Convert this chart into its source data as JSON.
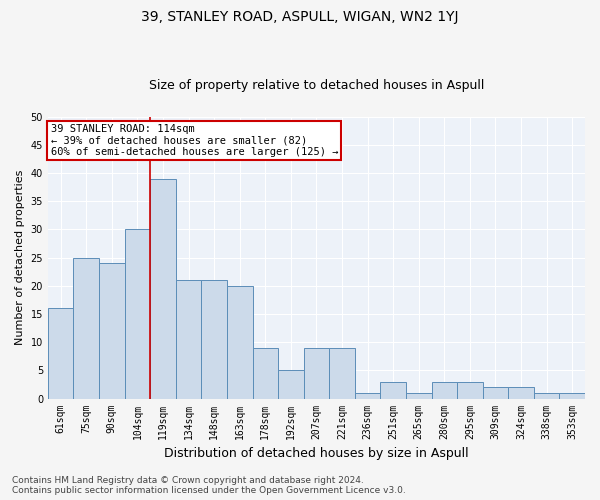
{
  "title": "39, STANLEY ROAD, ASPULL, WIGAN, WN2 1YJ",
  "subtitle": "Size of property relative to detached houses in Aspull",
  "xlabel": "Distribution of detached houses by size in Aspull",
  "ylabel": "Number of detached properties",
  "categories": [
    "61sqm",
    "75sqm",
    "90sqm",
    "104sqm",
    "119sqm",
    "134sqm",
    "148sqm",
    "163sqm",
    "178sqm",
    "192sqm",
    "207sqm",
    "221sqm",
    "236sqm",
    "251sqm",
    "265sqm",
    "280sqm",
    "295sqm",
    "309sqm",
    "324sqm",
    "338sqm",
    "353sqm"
  ],
  "values": [
    16,
    25,
    24,
    30,
    39,
    21,
    21,
    20,
    9,
    5,
    9,
    9,
    1,
    3,
    1,
    3,
    3,
    2,
    2,
    1,
    1
  ],
  "bar_color": "#ccdaea",
  "bar_edge_color": "#5b8db8",
  "bar_edge_width": 0.7,
  "vline_x_index": 4,
  "vline_color": "#cc0000",
  "vline_linewidth": 1.2,
  "annotation_line1": "39 STANLEY ROAD: 114sqm",
  "annotation_line2": "← 39% of detached houses are smaller (82)",
  "annotation_line3": "60% of semi-detached houses are larger (125) →",
  "annotation_box_color": "#ffffff",
  "annotation_box_edge_color": "#cc0000",
  "annotation_fontsize": 7.5,
  "ylim": [
    0,
    50
  ],
  "yticks": [
    0,
    5,
    10,
    15,
    20,
    25,
    30,
    35,
    40,
    45,
    50
  ],
  "background_color": "#edf2f9",
  "plot_bg_color": "#edf2f9",
  "fig_bg_color": "#f5f5f5",
  "grid_color": "#ffffff",
  "footer_line1": "Contains HM Land Registry data © Crown copyright and database right 2024.",
  "footer_line2": "Contains public sector information licensed under the Open Government Licence v3.0.",
  "title_fontsize": 10,
  "subtitle_fontsize": 9,
  "xlabel_fontsize": 9,
  "ylabel_fontsize": 8,
  "tick_fontsize": 7,
  "footer_fontsize": 6.5
}
